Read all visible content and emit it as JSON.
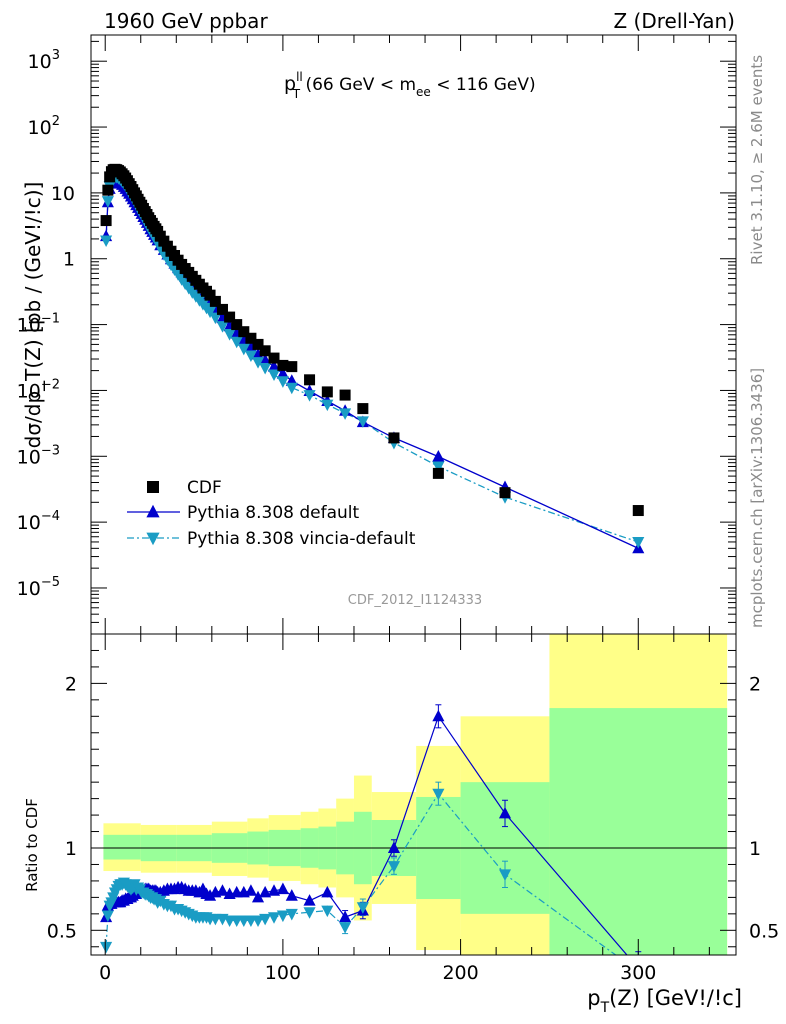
{
  "header": {
    "left": "1960 GeV ppbar",
    "right": "Z (Drell-Yan)"
  },
  "side": {
    "rivet": "Rivet 3.1.10, ≥ 2.6M events",
    "mcplots": "mcplots.cern.ch [arXiv:1306.3436]"
  },
  "colors": {
    "data": "#000000",
    "default": "#0000cc",
    "vincia": "#1a9cc4",
    "band_outer": "#ffff88",
    "band_inner": "#99ff99"
  },
  "chart_data": [
    {
      "type": "scatter",
      "role": "main",
      "title_main": "p",
      "title_sup": "ll",
      "title_sub": "T",
      "title_rest_1": " (66 GeV < m",
      "title_sub2": "ee",
      "title_rest_2": " < 116 GeV)",
      "ylabel": "dσ/dp_T(Z) [pb / (GeV!/!c)]",
      "watermark": "CDF_2012_I1124333",
      "ylog": true,
      "ylim": [
        2e-06,
        2500
      ],
      "xlim": [
        -8,
        355
      ],
      "y_ticks": [
        {
          "v": 1000,
          "base": "10",
          "exp": "3"
        },
        {
          "v": 100,
          "base": "10",
          "exp": "2"
        },
        {
          "v": 10,
          "base": "10",
          "exp": ""
        },
        {
          "v": 1,
          "base": "1",
          "exp": ""
        },
        {
          "v": 0.1,
          "base": "10",
          "exp": "−1"
        },
        {
          "v": 0.01,
          "base": "10",
          "exp": "−2"
        },
        {
          "v": 0.001,
          "base": "10",
          "exp": "−3"
        },
        {
          "v": 0.0001,
          "base": "10",
          "exp": "−4"
        },
        {
          "v": 1e-05,
          "base": "10",
          "exp": "−5"
        }
      ],
      "legend": [
        {
          "label": "CDF",
          "marker": "square",
          "line": "none",
          "color": "#000000"
        },
        {
          "label": "Pythia 8.308 default",
          "marker": "triangle-up",
          "line": "solid",
          "color": "#0000cc"
        },
        {
          "label": "Pythia 8.308 vincia-default",
          "marker": "triangle-down",
          "line": "dashdot",
          "color": "#1a9cc4"
        }
      ],
      "series": [
        {
          "name": "CDF",
          "x": [
            0.5,
            1.5,
            2.5,
            3.5,
            4.5,
            5.5,
            6.5,
            7.5,
            8.5,
            9.5,
            10.5,
            11.5,
            12.5,
            13.5,
            14.5,
            15.5,
            16.5,
            17.5,
            18.5,
            19.5,
            20.5,
            21.5,
            22.5,
            23.5,
            24.5,
            25.5,
            26.5,
            27.5,
            28.5,
            29.5,
            31,
            33,
            35,
            37,
            39,
            41,
            43,
            45,
            47,
            49,
            51,
            53,
            55,
            57,
            59,
            62,
            66,
            70,
            74,
            78,
            82,
            86,
            90,
            95,
            100,
            105,
            115,
            125,
            135,
            145,
            162.5,
            187.5,
            225,
            300
          ],
          "y": [
            3.8,
            11,
            17.5,
            21,
            22.5,
            22.8,
            22.5,
            21.8,
            20.8,
            19.5,
            18.2,
            16.8,
            15.3,
            13.8,
            12.5,
            11.2,
            10.0,
            9.0,
            8.0,
            7.2,
            6.5,
            5.8,
            5.2,
            4.7,
            4.2,
            3.8,
            3.45,
            3.1,
            2.85,
            2.6,
            2.2,
            1.85,
            1.55,
            1.3,
            1.12,
            0.95,
            0.82,
            0.71,
            0.62,
            0.54,
            0.47,
            0.41,
            0.36,
            0.32,
            0.28,
            0.225,
            0.17,
            0.13,
            0.1,
            0.078,
            0.062,
            0.05,
            0.04,
            0.031,
            0.024,
            0.023,
            0.0145,
            0.0095,
            0.0085,
            0.0053,
            0.0019,
            0.00055,
            0.00028,
            0.00015
          ]
        },
        {
          "name": "Pythia 8.308 default",
          "x": [
            0.5,
            1.5,
            2.5,
            3.5,
            4.5,
            5.5,
            6.5,
            7.5,
            8.5,
            9.5,
            10.5,
            11.5,
            12.5,
            13.5,
            14.5,
            15.5,
            16.5,
            17.5,
            18.5,
            19.5,
            20.5,
            21.5,
            22.5,
            23.5,
            24.5,
            25.5,
            26.5,
            27.5,
            28.5,
            29.5,
            31,
            33,
            35,
            37,
            39,
            41,
            43,
            45,
            47,
            49,
            51,
            53,
            55,
            57,
            59,
            62,
            66,
            70,
            74,
            78,
            82,
            86,
            90,
            95,
            100,
            105,
            115,
            125,
            135,
            145,
            162.5,
            187.5,
            225,
            300
          ],
          "y": [
            2.2,
            7.2,
            11.5,
            13.8,
            15.0,
            15.2,
            15.0,
            14.6,
            14.0,
            13.2,
            12.3,
            11.5,
            10.5,
            9.7,
            8.8,
            8.0,
            7.2,
            6.5,
            5.9,
            5.3,
            4.8,
            4.3,
            3.9,
            3.5,
            3.15,
            2.8,
            2.55,
            2.3,
            2.1,
            1.9,
            1.6,
            1.36,
            1.16,
            0.98,
            0.84,
            0.72,
            0.62,
            0.53,
            0.46,
            0.4,
            0.35,
            0.3,
            0.27,
            0.23,
            0.2,
            0.165,
            0.125,
            0.094,
            0.073,
            0.057,
            0.046,
            0.035,
            0.029,
            0.023,
            0.018,
            0.014,
            0.0098,
            0.0069,
            0.0049,
            0.0033,
            0.0019,
            0.00099,
            0.00034,
            4e-05
          ]
        },
        {
          "name": "Pythia 8.308 vincia-default",
          "x": [
            0.5,
            1.5,
            2.5,
            3.5,
            4.5,
            5.5,
            6.5,
            7.5,
            8.5,
            9.5,
            10.5,
            11.5,
            12.5,
            13.5,
            14.5,
            15.5,
            16.5,
            17.5,
            18.5,
            19.5,
            20.5,
            21.5,
            22.5,
            23.5,
            24.5,
            25.5,
            26.5,
            27.5,
            28.5,
            29.5,
            31,
            33,
            35,
            37,
            39,
            41,
            43,
            45,
            47,
            49,
            51,
            53,
            55,
            57,
            59,
            62,
            66,
            70,
            74,
            78,
            82,
            86,
            90,
            95,
            100,
            105,
            115,
            125,
            135,
            145,
            162.5,
            187.5,
            225,
            300
          ],
          "y": [
            1.9,
            7.5,
            12.6,
            15.8,
            17.0,
            17.5,
            17.4,
            16.8,
            16.0,
            15.0,
            14.0,
            12.8,
            11.6,
            10.4,
            9.4,
            8.4,
            7.6,
            6.7,
            6.0,
            5.3,
            4.8,
            4.25,
            3.8,
            3.35,
            3.0,
            2.7,
            2.4,
            2.15,
            1.95,
            1.75,
            1.45,
            1.18,
            0.98,
            0.82,
            0.69,
            0.58,
            0.49,
            0.42,
            0.36,
            0.31,
            0.27,
            0.235,
            0.205,
            0.18,
            0.158,
            0.128,
            0.095,
            0.072,
            0.055,
            0.043,
            0.034,
            0.027,
            0.022,
            0.0175,
            0.0138,
            0.011,
            0.0085,
            0.0061,
            0.0045,
            0.0034,
            0.0016,
            0.0007,
            0.00024,
            5e-05
          ]
        }
      ]
    },
    {
      "type": "line",
      "role": "ratio",
      "ylabel": "Ratio to CDF",
      "xlabel_main": "p",
      "xlabel_sub": "T",
      "xlabel_rest": "(Z) [GeV!/!c]",
      "ylim": [
        0.35,
        2.3
      ],
      "xlim": [
        -8,
        355
      ],
      "x_ticks": [
        0,
        100,
        200,
        300
      ],
      "y_ticks": [
        0.5,
        1,
        2
      ],
      "reference_line": 1,
      "bands": [
        {
          "x0": -1,
          "x1": 20,
          "outer": [
            0.86,
            1.15
          ],
          "inner": [
            0.93,
            1.08
          ]
        },
        {
          "x0": 20,
          "x1": 40,
          "outer": [
            0.85,
            1.14
          ],
          "inner": [
            0.92,
            1.08
          ]
        },
        {
          "x0": 40,
          "x1": 60,
          "outer": [
            0.85,
            1.14
          ],
          "inner": [
            0.92,
            1.08
          ]
        },
        {
          "x0": 60,
          "x1": 80,
          "outer": [
            0.83,
            1.16
          ],
          "inner": [
            0.91,
            1.09
          ]
        },
        {
          "x0": 80,
          "x1": 92,
          "outer": [
            0.82,
            1.18
          ],
          "inner": [
            0.9,
            1.1
          ]
        },
        {
          "x0": 92,
          "x1": 110,
          "outer": [
            0.8,
            1.2
          ],
          "inner": [
            0.89,
            1.11
          ]
        },
        {
          "x0": 110,
          "x1": 120,
          "outer": [
            0.78,
            1.22
          ],
          "inner": [
            0.88,
            1.12
          ]
        },
        {
          "x0": 120,
          "x1": 130,
          "outer": [
            0.76,
            1.24
          ],
          "inner": [
            0.87,
            1.13
          ]
        },
        {
          "x0": 130,
          "x1": 140,
          "outer": [
            0.7,
            1.3
          ],
          "inner": [
            0.84,
            1.16
          ]
        },
        {
          "x0": 140,
          "x1": 150,
          "outer": [
            0.56,
            1.44
          ],
          "inner": [
            0.78,
            1.22
          ]
        },
        {
          "x0": 150,
          "x1": 175,
          "outer": [
            0.66,
            1.34
          ],
          "inner": [
            0.83,
            1.17
          ]
        },
        {
          "x0": 175,
          "x1": 200,
          "outer": [
            0.38,
            1.62
          ],
          "inner": [
            0.69,
            1.31
          ]
        },
        {
          "x0": 200,
          "x1": 250,
          "outer": [
            0.2,
            1.8
          ],
          "inner": [
            0.6,
            1.4
          ]
        },
        {
          "x0": 250,
          "x1": 350,
          "outer": [
            0.0,
            2.5
          ],
          "inner": [
            0.0,
            1.85
          ]
        }
      ],
      "series": [
        {
          "name": "Pythia 8.308 default",
          "x": [
            0.5,
            1.5,
            2.5,
            3.5,
            4.5,
            5.5,
            6.5,
            7.5,
            8.5,
            9.5,
            10.5,
            11.5,
            12.5,
            13.5,
            14.5,
            15.5,
            16.5,
            17.5,
            18.5,
            19.5,
            20.5,
            21.5,
            22.5,
            23.5,
            24.5,
            25.5,
            26.5,
            27.5,
            28.5,
            29.5,
            31,
            33,
            35,
            37,
            39,
            41,
            43,
            45,
            47,
            49,
            51,
            53,
            55,
            57,
            59,
            62,
            66,
            70,
            74,
            78,
            82,
            86,
            90,
            95,
            100,
            105,
            115,
            125,
            135,
            145,
            162.5,
            187.5,
            225,
            300
          ],
          "y": [
            0.58,
            0.65,
            0.66,
            0.66,
            0.67,
            0.67,
            0.67,
            0.67,
            0.67,
            0.68,
            0.68,
            0.69,
            0.69,
            0.7,
            0.7,
            0.71,
            0.72,
            0.72,
            0.74,
            0.74,
            0.74,
            0.74,
            0.75,
            0.75,
            0.75,
            0.74,
            0.74,
            0.74,
            0.74,
            0.73,
            0.73,
            0.74,
            0.75,
            0.75,
            0.75,
            0.76,
            0.76,
            0.75,
            0.74,
            0.74,
            0.74,
            0.73,
            0.75,
            0.72,
            0.71,
            0.73,
            0.74,
            0.72,
            0.73,
            0.73,
            0.74,
            0.7,
            0.73,
            0.74,
            0.75,
            0.71,
            0.68,
            0.73,
            0.58,
            0.62,
            1.0,
            1.8,
            1.21,
            0.27
          ],
          "err": [
            0.03,
            0.02,
            0.02,
            0.02,
            0.02,
            0.02,
            0.02,
            0.02,
            0.02,
            0.02,
            0.02,
            0.02,
            0.02,
            0.02,
            0.02,
            0.02,
            0.02,
            0.02,
            0.02,
            0.02,
            0.02,
            0.02,
            0.02,
            0.02,
            0.02,
            0.02,
            0.02,
            0.02,
            0.02,
            0.02,
            0.02,
            0.02,
            0.02,
            0.02,
            0.02,
            0.02,
            0.02,
            0.02,
            0.02,
            0.02,
            0.02,
            0.02,
            0.02,
            0.02,
            0.02,
            0.02,
            0.02,
            0.02,
            0.02,
            0.02,
            0.02,
            0.02,
            0.02,
            0.02,
            0.02,
            0.02,
            0.02,
            0.03,
            0.04,
            0.05,
            0.05,
            0.07,
            0.08,
            0.1
          ]
        },
        {
          "name": "Pythia 8.308 vincia-default",
          "x": [
            0.5,
            1.5,
            2.5,
            3.5,
            4.5,
            5.5,
            6.5,
            7.5,
            8.5,
            9.5,
            10.5,
            11.5,
            12.5,
            13.5,
            14.5,
            15.5,
            16.5,
            17.5,
            18.5,
            19.5,
            20.5,
            21.5,
            22.5,
            23.5,
            24.5,
            25.5,
            26.5,
            27.5,
            28.5,
            29.5,
            31,
            33,
            35,
            37,
            39,
            41,
            43,
            45,
            47,
            49,
            51,
            53,
            55,
            57,
            59,
            62,
            66,
            70,
            74,
            78,
            82,
            86,
            90,
            95,
            100,
            105,
            115,
            125,
            135,
            145,
            162.5,
            187.5,
            225,
            300
          ],
          "y": [
            0.4,
            0.59,
            0.65,
            0.67,
            0.7,
            0.73,
            0.75,
            0.77,
            0.78,
            0.78,
            0.79,
            0.78,
            0.77,
            0.76,
            0.75,
            0.76,
            0.78,
            0.75,
            0.76,
            0.75,
            0.73,
            0.73,
            0.72,
            0.72,
            0.71,
            0.7,
            0.7,
            0.69,
            0.69,
            0.67,
            0.68,
            0.66,
            0.65,
            0.65,
            0.63,
            0.63,
            0.62,
            0.61,
            0.6,
            0.59,
            0.58,
            0.58,
            0.58,
            0.58,
            0.57,
            0.57,
            0.57,
            0.56,
            0.56,
            0.56,
            0.56,
            0.56,
            0.57,
            0.58,
            0.59,
            0.6,
            0.61,
            0.62,
            0.52,
            0.64,
            0.89,
            1.33,
            0.84,
            0.25
          ],
          "err": [
            0.03,
            0.02,
            0.02,
            0.02,
            0.02,
            0.02,
            0.02,
            0.02,
            0.02,
            0.02,
            0.02,
            0.02,
            0.02,
            0.02,
            0.02,
            0.02,
            0.02,
            0.02,
            0.02,
            0.02,
            0.02,
            0.02,
            0.02,
            0.02,
            0.02,
            0.02,
            0.02,
            0.02,
            0.02,
            0.02,
            0.02,
            0.02,
            0.02,
            0.02,
            0.02,
            0.02,
            0.02,
            0.02,
            0.02,
            0.02,
            0.02,
            0.02,
            0.02,
            0.02,
            0.02,
            0.02,
            0.02,
            0.02,
            0.02,
            0.02,
            0.02,
            0.02,
            0.02,
            0.02,
            0.02,
            0.02,
            0.02,
            0.03,
            0.04,
            0.05,
            0.05,
            0.07,
            0.08,
            0.1
          ]
        }
      ]
    }
  ]
}
